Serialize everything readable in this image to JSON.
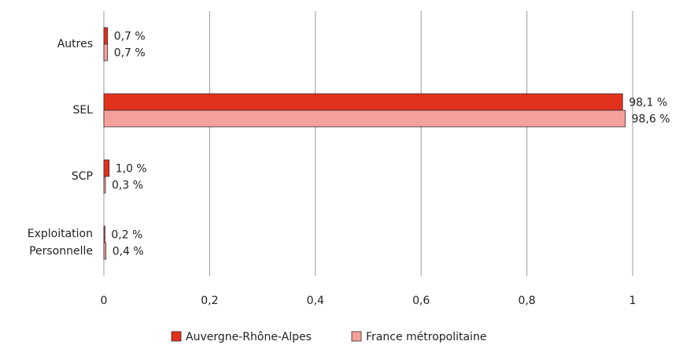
{
  "chart_data": {
    "type": "bar",
    "orientation": "horizontal",
    "categories": [
      "Autres",
      "SEL",
      "SCP",
      "Exploitation Personnelle"
    ],
    "series": [
      {
        "name": "Auvergne-Rhône-Alpes",
        "color": "#e2311d",
        "values": [
          0.007,
          0.981,
          0.01,
          0.002
        ],
        "value_labels": [
          "0,7 %",
          "98,1 %",
          "1,0 %",
          "0,2 %"
        ]
      },
      {
        "name": "France métropolitaine",
        "color": "#f4a19c",
        "values": [
          0.007,
          0.986,
          0.003,
          0.004
        ],
        "value_labels": [
          "0,7 %",
          "98,6 %",
          "0,3 %",
          "0,4 %"
        ]
      }
    ],
    "xlim": [
      0,
      1
    ],
    "xticks": [
      0,
      {
        "value": 0.2,
        "label": "0,2"
      },
      {
        "value": 0.4,
        "label": "0,4"
      },
      {
        "value": 0.6,
        "label": "0,6"
      },
      {
        "value": 0.8,
        "label": "0,8"
      },
      1
    ],
    "grid": true,
    "legend": "bottom"
  }
}
